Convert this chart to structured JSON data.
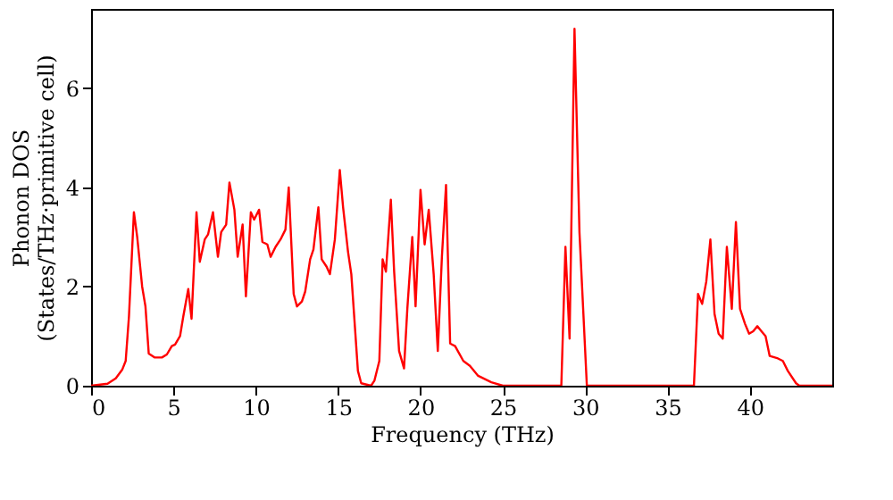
{
  "chart_data": {
    "type": "line",
    "xlabel": "Frequency (THz)",
    "ylabel": "Phonon DOS\n(States/THz·primitive cell)",
    "xlim": [
      0,
      45
    ],
    "ylim": [
      0,
      7.6
    ],
    "xticks": [
      0,
      5,
      10,
      15,
      20,
      25,
      30,
      35,
      40
    ],
    "yticks": [
      0,
      2,
      4,
      6
    ],
    "grid": false,
    "marker": "none",
    "line_style": "solid",
    "series": [
      {
        "color": "#ff0000",
        "x": [
          0,
          1.0,
          1.5,
          1.9,
          2.1,
          2.3,
          2.6,
          2.8,
          3.1,
          3.3,
          3.5,
          3.85,
          4.3,
          4.6,
          4.9,
          5.1,
          5.4,
          5.6,
          5.9,
          6.1,
          6.4,
          6.6,
          6.9,
          7.1,
          7.4,
          7.7,
          7.9,
          8.2,
          8.4,
          8.7,
          8.9,
          9.2,
          9.4,
          9.7,
          9.9,
          10.2,
          10.4,
          10.7,
          10.9,
          11.2,
          11.5,
          11.8,
          12.0,
          12.3,
          12.5,
          12.8,
          13.0,
          13.3,
          13.5,
          13.8,
          14.0,
          14.3,
          14.5,
          14.8,
          15.1,
          15.3,
          15.6,
          15.8,
          16.2,
          16.4,
          17.0,
          17.2,
          17.5,
          17.7,
          17.9,
          18.2,
          18.4,
          18.7,
          19.0,
          19.2,
          19.5,
          19.7,
          20.0,
          20.25,
          20.5,
          20.8,
          21.05,
          21.3,
          21.55,
          21.8,
          22.1,
          22.6,
          23.0,
          23.5,
          24.3,
          25,
          28.55,
          28.8,
          29.05,
          29.35,
          29.65,
          30.1,
          36.6,
          36.85,
          37.1,
          37.35,
          37.6,
          37.85,
          38.1,
          38.35,
          38.6,
          38.9,
          39.15,
          39.4,
          39.7,
          39.95,
          40.2,
          40.45,
          40.7,
          40.95,
          41.2,
          41.7,
          42.0,
          42.3,
          42.8,
          43.0,
          45
        ],
        "values": [
          0,
          0.04,
          0.15,
          0.33,
          0.5,
          1.4,
          3.5,
          3.0,
          2.0,
          1.6,
          0.65,
          0.57,
          0.57,
          0.63,
          0.8,
          0.83,
          1.0,
          1.4,
          1.95,
          1.35,
          3.5,
          2.5,
          2.95,
          3.05,
          3.5,
          2.6,
          3.1,
          3.25,
          4.1,
          3.55,
          2.6,
          3.25,
          1.8,
          3.5,
          3.35,
          3.55,
          2.9,
          2.85,
          2.6,
          2.8,
          2.95,
          3.15,
          4.0,
          1.85,
          1.6,
          1.7,
          1.9,
          2.55,
          2.75,
          3.6,
          2.55,
          2.4,
          2.25,
          2.95,
          4.35,
          3.6,
          2.7,
          2.25,
          0.3,
          0.05,
          0,
          0.1,
          0.5,
          2.55,
          2.3,
          3.75,
          2.3,
          0.7,
          0.35,
          1.55,
          3.0,
          1.6,
          3.95,
          2.85,
          3.55,
          2.25,
          0.7,
          2.6,
          4.05,
          0.85,
          0.8,
          0.5,
          0.4,
          0.2,
          0.07,
          0,
          0,
          2.8,
          0.95,
          7.2,
          3.1,
          0,
          0,
          1.85,
          1.65,
          2.1,
          2.95,
          1.45,
          1.05,
          0.95,
          2.8,
          1.55,
          3.3,
          1.55,
          1.25,
          1.05,
          1.1,
          1.2,
          1.1,
          1.0,
          0.6,
          0.55,
          0.5,
          0.3,
          0.05,
          0,
          0
        ]
      }
    ]
  }
}
